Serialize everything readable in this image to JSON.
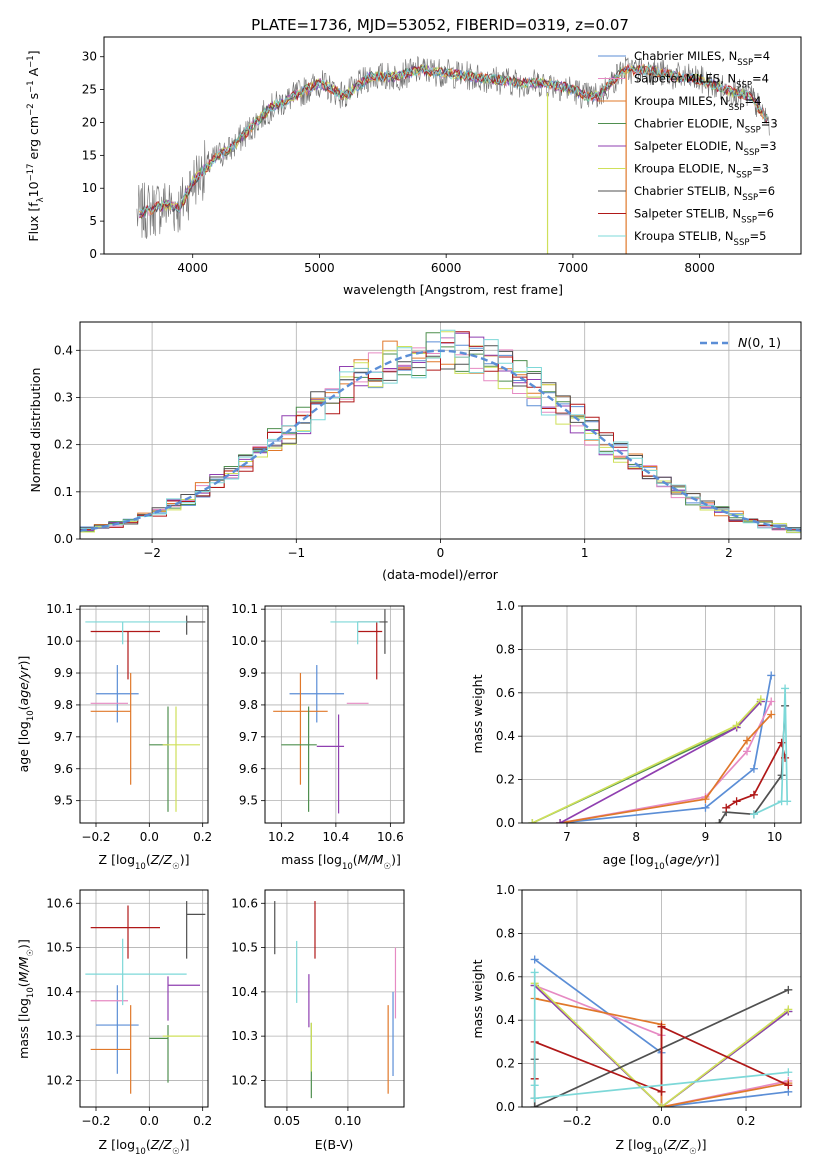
{
  "figure_title": "PLATE=1736, MJD=53052, FIBERID=0319, z=0.07",
  "palette": {
    "chabrier_miles": "#5b8ed6",
    "salpeter_miles": "#e68ac3",
    "kroupa_miles": "#e0782a",
    "chabrier_elodie": "#4f8f4f",
    "salpeter_elodie": "#8f3fb0",
    "kroupa_elodie": "#cfe05a",
    "chabrier_stelib": "#505050",
    "salpeter_stelib": "#b01818",
    "kroupa_stelib": "#7dd8d8",
    "gauss": "#5b8ed6"
  },
  "chart_data": [
    {
      "id": "spectrum",
      "type": "line",
      "xlabel": "wavelength [Angstrom, rest frame]",
      "ylabel": "Flux [f_λ10^-17 erg cm^-2 s^-1 A^-1]",
      "xlim": [
        3300,
        8800
      ],
      "ylim": [
        0,
        33
      ],
      "xticks": [
        4000,
        5000,
        6000,
        7000,
        8000
      ],
      "yticks": [
        0,
        5,
        10,
        15,
        20,
        25,
        30
      ],
      "grid": false,
      "legend_position": "top-right",
      "legend": [
        {
          "key": "chabrier_miles",
          "label": "Chabrier MILES, N",
          "sub": "SSP",
          "tail": "=4"
        },
        {
          "key": "salpeter_miles",
          "label": "Salpeter MILES, N",
          "sub": "SSP",
          "tail": "=4"
        },
        {
          "key": "kroupa_miles",
          "label": "Kroupa MILES, N",
          "sub": "SSP",
          "tail": "=4"
        },
        {
          "key": "chabrier_elodie",
          "label": "Chabrier ELODIE, N",
          "sub": "SSP",
          "tail": "=3"
        },
        {
          "key": "salpeter_elodie",
          "label": "Salpeter ELODIE, N",
          "sub": "SSP",
          "tail": "=3"
        },
        {
          "key": "kroupa_elodie",
          "label": "Kroupa ELODIE, N",
          "sub": "SSP",
          "tail": "=3"
        },
        {
          "key": "chabrier_stelib",
          "label": "Chabrier STELIB, N",
          "sub": "SSP",
          "tail": "=6"
        },
        {
          "key": "salpeter_stelib",
          "label": "Salpeter STELIB, N",
          "sub": "SSP",
          "tail": "=6"
        },
        {
          "key": "kroupa_stelib",
          "label": "Kroupa STELIB, N",
          "sub": "SSP",
          "tail": "=5"
        }
      ],
      "continuum": [
        [
          3560,
          6
        ],
        [
          3700,
          7
        ],
        [
          3800,
          7.5
        ],
        [
          3900,
          7
        ],
        [
          4000,
          11
        ],
        [
          4100,
          13
        ],
        [
          4200,
          15
        ],
        [
          4300,
          16
        ],
        [
          4400,
          18
        ],
        [
          4600,
          22
        ],
        [
          4800,
          24
        ],
        [
          5000,
          26
        ],
        [
          5200,
          24
        ],
        [
          5400,
          27
        ],
        [
          5600,
          27
        ],
        [
          5800,
          28
        ],
        [
          6000,
          27.5
        ],
        [
          6200,
          27
        ],
        [
          6400,
          26.5
        ],
        [
          6600,
          26
        ],
        [
          6800,
          26
        ],
        [
          7000,
          25
        ],
        [
          7100,
          24
        ],
        [
          7200,
          24
        ],
        [
          7400,
          28
        ],
        [
          7600,
          28
        ],
        [
          7800,
          27
        ],
        [
          8000,
          26.5
        ],
        [
          8200,
          25
        ],
        [
          8400,
          24
        ],
        [
          8550,
          20
        ]
      ]
    },
    {
      "id": "residuals",
      "type": "histogram",
      "xlabel": "(data-model)/error",
      "ylabel": "Normed distribution",
      "xlim": [
        -2.5,
        2.5
      ],
      "ylim": [
        0,
        0.46
      ],
      "xticks": [
        -2,
        -1,
        0,
        1,
        2
      ],
      "yticks": [
        0.0,
        0.1,
        0.2,
        0.3,
        0.4
      ],
      "grid": true,
      "legend_position": "top-right",
      "gauss_label": "N(0,1)",
      "bin_width": 0.1,
      "approximate_density": "normal(0,1) with scatter"
    },
    {
      "id": "age_vs_Z",
      "type": "scatter",
      "xlabel": "Z [log10(Z/Z☉)]",
      "ylabel": "age [log10(age/yr)]",
      "xlim": [
        -0.26,
        0.22
      ],
      "ylim": [
        9.43,
        10.11
      ],
      "xticks": [
        -0.2,
        0.0,
        0.2
      ],
      "yticks": [
        9.5,
        9.6,
        9.7,
        9.8,
        9.9,
        10.0,
        10.1
      ],
      "grid": true,
      "points": [
        {
          "key": "chabrier_miles",
          "x": -0.12,
          "xerr": [
            0.08,
            0.08
          ],
          "y": 9.835,
          "yerr": [
            0.09,
            0.09
          ]
        },
        {
          "key": "salpeter_miles",
          "x": -0.15,
          "xerr": [
            0.07,
            0.07
          ],
          "y": 9.805,
          "yerr": [
            0.0,
            0.0
          ]
        },
        {
          "key": "kroupa_miles",
          "x": -0.07,
          "xerr": [
            0.15,
            0.0
          ],
          "y": 9.78,
          "yerr": [
            0.23,
            0.12
          ]
        },
        {
          "key": "chabrier_elodie",
          "x": 0.07,
          "xerr": [
            0.07,
            0.0
          ],
          "y": 9.675,
          "yerr": [
            0.21,
            0.12
          ]
        },
        {
          "key": "salpeter_elodie",
          "x": 0.07,
          "xerr": [
            0.0,
            0.0
          ],
          "y": 9.67,
          "yerr": [
            0.0,
            0.0
          ]
        },
        {
          "key": "kroupa_elodie",
          "x": 0.1,
          "xerr": [
            0.05,
            0.09
          ],
          "y": 9.675,
          "yerr": [
            0.21,
            0.12
          ]
        },
        {
          "key": "chabrier_stelib",
          "x": 0.14,
          "xerr": [
            0.0,
            0.07
          ],
          "y": 10.06,
          "yerr": [
            0.04,
            0.02
          ]
        },
        {
          "key": "salpeter_stelib",
          "x": -0.08,
          "xerr": [
            0.14,
            0.12
          ],
          "y": 10.03,
          "yerr": [
            0.15,
            0.0
          ]
        },
        {
          "key": "kroupa_stelib",
          "x": -0.1,
          "xerr": [
            0.14,
            0.24
          ],
          "y": 10.06,
          "yerr": [
            0.07,
            0.0
          ]
        }
      ]
    },
    {
      "id": "age_vs_mass",
      "type": "scatter",
      "xlabel": "mass [log10(M/M☉)]",
      "xlim": [
        10.14,
        10.65
      ],
      "ylim": [
        9.43,
        10.11
      ],
      "xticks": [
        10.2,
        10.4,
        10.6
      ],
      "yticks": [
        9.5,
        9.6,
        9.7,
        9.8,
        9.9,
        10.0,
        10.1
      ],
      "grid": true,
      "points": [
        {
          "key": "chabrier_miles",
          "x": 10.33,
          "xerr": [
            0.1,
            0.1
          ],
          "y": 9.835,
          "yerr": [
            0.09,
            0.09
          ]
        },
        {
          "key": "salpeter_miles",
          "x": 10.44,
          "xerr": [
            0.0,
            0.08
          ],
          "y": 9.805,
          "yerr": [
            0.0,
            0.0
          ]
        },
        {
          "key": "kroupa_miles",
          "x": 10.27,
          "xerr": [
            0.1,
            0.1
          ],
          "y": 9.78,
          "yerr": [
            0.23,
            0.12
          ]
        },
        {
          "key": "chabrier_elodie",
          "x": 10.3,
          "xerr": [
            0.1,
            0.03
          ],
          "y": 9.675,
          "yerr": [
            0.21,
            0.12
          ]
        },
        {
          "key": "salpeter_elodie",
          "x": 10.41,
          "xerr": [
            0.08,
            0.02
          ],
          "y": 9.67,
          "yerr": [
            0.21,
            0.1
          ]
        },
        {
          "key": "kroupa_elodie",
          "x": 10.3,
          "xerr": [
            0.0,
            0.0
          ],
          "y": 9.675,
          "yerr": [
            0.0,
            0.0
          ]
        },
        {
          "key": "chabrier_stelib",
          "x": 10.58,
          "xerr": [
            0.1,
            0.01
          ],
          "y": 10.06,
          "yerr": [
            0.1,
            0.04
          ]
        },
        {
          "key": "salpeter_stelib",
          "x": 10.55,
          "xerr": [
            0.07,
            0.02
          ],
          "y": 10.03,
          "yerr": [
            0.15,
            0.03
          ]
        },
        {
          "key": "kroupa_stelib",
          "x": 10.48,
          "xerr": [
            0.1,
            0.08
          ],
          "y": 10.06,
          "yerr": [
            0.07,
            0.0
          ]
        }
      ]
    },
    {
      "id": "weight_vs_age",
      "type": "line",
      "xlabel": "age [log10(age/yr)]",
      "ylabel": "mass weight",
      "xlim": [
        6.35,
        10.38
      ],
      "ylim": [
        0,
        1
      ],
      "xticks": [
        7,
        8,
        9,
        10
      ],
      "yticks": [
        0.0,
        0.2,
        0.4,
        0.6,
        0.8,
        1.0
      ],
      "grid": true,
      "series": [
        {
          "key": "chabrier_miles",
          "x": [
            6.9,
            9.0,
            9.7,
            9.95
          ],
          "y": [
            0.0,
            0.07,
            0.25,
            0.68
          ]
        },
        {
          "key": "salpeter_miles",
          "x": [
            6.9,
            9.0,
            9.6,
            9.95
          ],
          "y": [
            0.0,
            0.12,
            0.33,
            0.56
          ]
        },
        {
          "key": "kroupa_miles",
          "x": [
            6.9,
            9.0,
            9.6,
            9.95
          ],
          "y": [
            0.0,
            0.11,
            0.38,
            0.5
          ]
        },
        {
          "key": "chabrier_elodie",
          "x": [
            6.5,
            9.45,
            9.8
          ],
          "y": [
            0.0,
            0.44,
            0.56
          ]
        },
        {
          "key": "salpeter_elodie",
          "x": [
            6.9,
            9.45,
            9.8
          ],
          "y": [
            0.0,
            0.44,
            0.56
          ]
        },
        {
          "key": "kroupa_elodie",
          "x": [
            6.5,
            9.45,
            9.8
          ],
          "y": [
            0.0,
            0.45,
            0.57
          ]
        },
        {
          "key": "chabrier_stelib",
          "x": [
            9.2,
            9.3,
            9.7,
            10.1,
            10.15
          ],
          "y": [
            0.0,
            0.05,
            0.04,
            0.22,
            0.54
          ]
        },
        {
          "key": "salpeter_stelib",
          "x": [
            9.3,
            9.45,
            9.7,
            10.1,
            10.15
          ],
          "y": [
            0.07,
            0.1,
            0.13,
            0.37,
            0.3
          ]
        },
        {
          "key": "kroupa_stelib",
          "x": [
            9.7,
            10.1,
            10.15,
            10.18
          ],
          "y": [
            0.04,
            0.1,
            0.62,
            0.1
          ]
        }
      ]
    },
    {
      "id": "mass_vs_Z",
      "type": "scatter",
      "xlabel": "Z [log10(Z/Z☉)]",
      "ylabel": "mass [log10(M/M☉)]",
      "xlim": [
        -0.26,
        0.22
      ],
      "ylim": [
        10.14,
        10.63
      ],
      "xticks": [
        -0.2,
        0.0,
        0.2
      ],
      "yticks": [
        10.2,
        10.3,
        10.4,
        10.5,
        10.6
      ],
      "grid": true,
      "points": [
        {
          "key": "chabrier_miles",
          "x": -0.12,
          "xerr": [
            0.08,
            0.08
          ],
          "y": 10.325,
          "yerr": [
            0.11,
            0.09
          ]
        },
        {
          "key": "salpeter_miles",
          "x": -0.15,
          "xerr": [
            0.07,
            0.07
          ],
          "y": 10.38,
          "yerr": [
            0.0,
            0.0
          ]
        },
        {
          "key": "kroupa_miles",
          "x": -0.07,
          "xerr": [
            0.15,
            0.0
          ],
          "y": 10.27,
          "yerr": [
            0.1,
            0.1
          ]
        },
        {
          "key": "chabrier_elodie",
          "x": 0.07,
          "xerr": [
            0.07,
            0.0
          ],
          "y": 10.295,
          "yerr": [
            0.1,
            0.03
          ]
        },
        {
          "key": "salpeter_elodie",
          "x": 0.07,
          "xerr": [
            0.0,
            0.12
          ],
          "y": 10.415,
          "yerr": [
            0.08,
            0.02
          ]
        },
        {
          "key": "kroupa_elodie",
          "x": 0.1,
          "xerr": [
            0.05,
            0.09
          ],
          "y": 10.3,
          "yerr": [
            0.0,
            0.0
          ]
        },
        {
          "key": "chabrier_stelib",
          "x": 0.14,
          "xerr": [
            0.0,
            0.07
          ],
          "y": 10.575,
          "yerr": [
            0.1,
            0.03
          ]
        },
        {
          "key": "salpeter_stelib",
          "x": -0.08,
          "xerr": [
            0.14,
            0.12
          ],
          "y": 10.545,
          "yerr": [
            0.07,
            0.05
          ]
        },
        {
          "key": "kroupa_stelib",
          "x": -0.1,
          "xerr": [
            0.14,
            0.24
          ],
          "y": 10.44,
          "yerr": [
            0.07,
            0.08
          ]
        }
      ]
    },
    {
      "id": "mass_vs_ebv",
      "type": "scatter",
      "xlabel": "E(B-V)",
      "xlim": [
        0.032,
        0.146
      ],
      "ylim": [
        10.14,
        10.63
      ],
      "xticks": [
        0.05,
        0.1
      ],
      "xtick_labels": [
        "0.05",
        "0.10"
      ],
      "yticks": [
        10.2,
        10.3,
        10.4,
        10.5,
        10.6
      ],
      "grid": true,
      "points": [
        {
          "key": "chabrier_miles",
          "x": 0.137,
          "xerr": [
            0.0,
            0.0
          ],
          "y": 10.3,
          "yerr": [
            0.09,
            0.1
          ]
        },
        {
          "key": "salpeter_miles",
          "x": 0.139,
          "xerr": [
            0.0,
            0.0
          ],
          "y": 10.42,
          "yerr": [
            0.08,
            0.08
          ]
        },
        {
          "key": "kroupa_miles",
          "x": 0.133,
          "xerr": [
            0.0,
            0.0
          ],
          "y": 10.27,
          "yerr": [
            0.1,
            0.1
          ]
        },
        {
          "key": "chabrier_elodie",
          "x": 0.07,
          "xerr": [
            0.0,
            0.0
          ],
          "y": 10.26,
          "yerr": [
            0.1,
            0.07
          ]
        },
        {
          "key": "salpeter_elodie",
          "x": 0.068,
          "xerr": [
            0.0,
            0.0
          ],
          "y": 10.4,
          "yerr": [
            0.08,
            0.04
          ]
        },
        {
          "key": "kroupa_elodie",
          "x": 0.07,
          "xerr": [
            0.0,
            0.0
          ],
          "y": 10.25,
          "yerr": [
            0.03,
            0.08
          ]
        },
        {
          "key": "chabrier_stelib",
          "x": 0.04,
          "xerr": [
            0.0,
            0.0
          ],
          "y": 10.545,
          "yerr": [
            0.06,
            0.06
          ]
        },
        {
          "key": "salpeter_stelib",
          "x": 0.073,
          "xerr": [
            0.0,
            0.0
          ],
          "y": 10.545,
          "yerr": [
            0.07,
            0.06
          ]
        },
        {
          "key": "kroupa_stelib",
          "x": 0.058,
          "xerr": [
            0.0,
            0.0
          ],
          "y": 10.445,
          "yerr": [
            0.07,
            0.07
          ]
        }
      ]
    },
    {
      "id": "weight_vs_Z",
      "type": "line",
      "xlabel": "Z [log10(Z/Z☉)]",
      "ylabel": "mass weight",
      "xlim": [
        -0.33,
        0.33
      ],
      "ylim": [
        0,
        1
      ],
      "xticks": [
        -0.2,
        0.0,
        0.2
      ],
      "yticks": [
        0.0,
        0.2,
        0.4,
        0.6,
        0.8,
        1.0
      ],
      "grid": true,
      "series": [
        {
          "key": "chabrier_miles",
          "x": [
            -0.3,
            0.0,
            0.0,
            0.3
          ],
          "y": [
            0.68,
            0.25,
            0.0,
            0.07
          ]
        },
        {
          "key": "salpeter_miles",
          "x": [
            -0.3,
            0.0,
            0.0,
            0.3
          ],
          "y": [
            0.56,
            0.33,
            0.0,
            0.12
          ]
        },
        {
          "key": "kroupa_miles",
          "x": [
            -0.3,
            0.0,
            0.0,
            0.3
          ],
          "y": [
            0.5,
            0.38,
            0.0,
            0.11
          ]
        },
        {
          "key": "chabrier_elodie",
          "x": [
            -0.3,
            0.0,
            0.3
          ],
          "y": [
            0.56,
            0.0,
            0.44
          ]
        },
        {
          "key": "salpeter_elodie",
          "x": [
            -0.3,
            0.0,
            0.3
          ],
          "y": [
            0.56,
            0.0,
            0.44
          ]
        },
        {
          "key": "kroupa_elodie",
          "x": [
            -0.3,
            0.0,
            0.3
          ],
          "y": [
            0.57,
            0.0,
            0.45
          ]
        },
        {
          "key": "chabrier_stelib",
          "x": [
            -0.3,
            -0.3,
            -0.3,
            0.3
          ],
          "y": [
            0.22,
            0.04,
            0.0,
            0.54
          ]
        },
        {
          "key": "salpeter_stelib",
          "x": [
            -0.3,
            -0.3,
            0.0,
            0.0,
            0.3
          ],
          "y": [
            0.13,
            0.3,
            0.07,
            0.37,
            0.1
          ]
        },
        {
          "key": "kroupa_stelib",
          "x": [
            -0.3,
            -0.3,
            -0.3,
            0.3
          ],
          "y": [
            0.62,
            0.1,
            0.04,
            0.16
          ]
        }
      ]
    }
  ]
}
